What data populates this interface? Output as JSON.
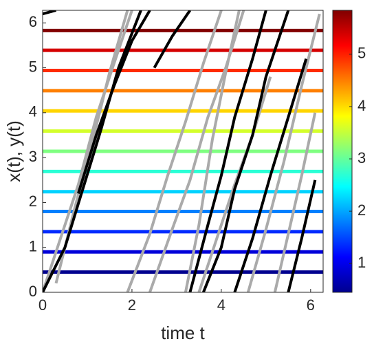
{
  "chart_data": {
    "type": "line",
    "x_label": "time t",
    "y_label": "x(t), y(t)",
    "xlim": [
      0,
      6.28
    ],
    "ylim": [
      0,
      6.28
    ],
    "xticks": [
      0,
      2,
      4,
      6
    ],
    "yticks": [
      0,
      1,
      2,
      3,
      4,
      5,
      6
    ],
    "levels": {
      "values": [
        0.45,
        0.9,
        1.35,
        1.8,
        2.24,
        2.69,
        3.14,
        3.59,
        4.04,
        4.49,
        4.94,
        5.39,
        5.83
      ]
    },
    "colormap": [
      "#00008f",
      "#0000ff",
      "#0080ff",
      "#00ffff",
      "#80ff80",
      "#ffff00",
      "#ff8000",
      "#ff0000",
      "#800000"
    ],
    "colorbar": {
      "lim": [
        0.45,
        5.84
      ],
      "ticks": [
        1,
        2,
        3,
        4,
        5
      ]
    },
    "series": [
      {
        "color": "#aaaaaa",
        "x": [
          0,
          0.4,
          0.8,
          1.2,
          1.6,
          2.0
        ],
        "y": [
          0,
          1.2,
          2.4,
          3.9,
          5.1,
          6.28
        ]
      },
      {
        "color": "#aaaaaa",
        "x": [
          0.3,
          0.7,
          1.1,
          1.5,
          1.9
        ],
        "y": [
          0.2,
          1.8,
          3.3,
          4.9,
          6.28
        ]
      },
      {
        "color": "#aaaaaa",
        "x": [
          1.9,
          2.4,
          2.8,
          3.2,
          3.6,
          4.0
        ],
        "y": [
          0,
          1.3,
          2.6,
          3.8,
          5.1,
          6.28
        ]
      },
      {
        "color": "#aaaaaa",
        "x": [
          2.4,
          2.9,
          3.3,
          3.7,
          4.1,
          4.5
        ],
        "y": [
          0,
          1.4,
          2.5,
          3.9,
          5.0,
          6.28
        ]
      },
      {
        "color": "#aaaaaa",
        "x": [
          3.2,
          3.5,
          3.8,
          4.1,
          4.4
        ],
        "y": [
          0,
          1.5,
          3.4,
          4.9,
          6.28
        ]
      },
      {
        "color": "#aaaaaa",
        "x": [
          4.6,
          5.0,
          5.4,
          5.8,
          6.2
        ],
        "y": [
          0,
          1.4,
          2.9,
          4.6,
          6.2
        ]
      },
      {
        "color": "#aaaaaa",
        "x": [
          5.2,
          5.5,
          5.8,
          6.1
        ],
        "y": [
          0,
          1.3,
          2.6,
          4.0
        ]
      },
      {
        "color": "#aaaaaa",
        "x": [
          3.5,
          3.9,
          4.3,
          4.7,
          5.1
        ],
        "y": [
          0,
          1.2,
          2.4,
          3.5,
          4.8
        ]
      },
      {
        "color": "#000000",
        "x": [
          0,
          0.5,
          0.9,
          1.3,
          1.7,
          2.2
        ],
        "y": [
          0,
          1.0,
          2.3,
          3.6,
          5.0,
          6.28
        ]
      },
      {
        "color": "#000000",
        "x": [
          0.8,
          1.2,
          1.6,
          2.0,
          2.4
        ],
        "y": [
          2.2,
          3.5,
          4.6,
          5.6,
          6.28
        ]
      },
      {
        "color": "#000000",
        "x": [
          3.3,
          3.7,
          4.0,
          4.3,
          4.7,
          5.0
        ],
        "y": [
          0,
          1.5,
          2.6,
          3.9,
          5.2,
          6.28
        ]
      },
      {
        "color": "#000000",
        "x": [
          3.6,
          4.0,
          4.3,
          4.7,
          5.0,
          5.5
        ],
        "y": [
          0,
          1.0,
          2.3,
          3.5,
          4.8,
          6.28
        ]
      },
      {
        "color": "#000000",
        "x": [
          4.3,
          4.7,
          5.1,
          5.5,
          5.9
        ],
        "y": [
          0,
          1.2,
          2.6,
          3.9,
          5.2
        ]
      },
      {
        "color": "#000000",
        "x": [
          2.5,
          2.9,
          3.3
        ],
        "y": [
          5.0,
          5.7,
          6.28
        ]
      },
      {
        "color": "#000000",
        "x": [
          5.5,
          5.8,
          6.1
        ],
        "y": [
          0,
          1.2,
          2.5
        ]
      },
      {
        "color": "#000000",
        "x": [
          0,
          0.3
        ],
        "y": [
          6.2,
          6.28
        ]
      }
    ]
  }
}
